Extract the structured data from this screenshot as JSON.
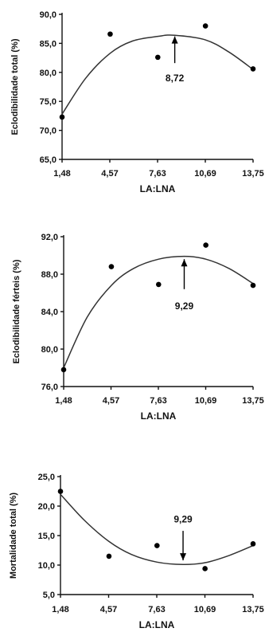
{
  "chart_data": [
    {
      "type": "scatter",
      "xlabel": "LA:LNA",
      "ylabel": "Eclodibilidade total (%)",
      "x_ticks": [
        "1,48",
        "4,57",
        "7,63",
        "10,69",
        "13,75"
      ],
      "y_ticks": [
        "65,0",
        "70,0",
        "75,0",
        "80,0",
        "85,0",
        "90,0"
      ],
      "ylim": [
        65,
        90
      ],
      "x": [
        1.48,
        4.57,
        7.63,
        10.69,
        13.75
      ],
      "y": [
        72.3,
        86.6,
        82.6,
        88.0,
        80.6
      ],
      "fit": [
        [
          1.48,
          72.8
        ],
        [
          3.0,
          79.0
        ],
        [
          4.57,
          83.3
        ],
        [
          6.0,
          85.4
        ],
        [
          7.63,
          86.2
        ],
        [
          8.72,
          86.4
        ],
        [
          10.69,
          85.6
        ],
        [
          12.2,
          83.5
        ],
        [
          13.75,
          80.5
        ]
      ],
      "annotation": {
        "text": "8,72",
        "x": 8.72,
        "arrow_tip_y": 86.2,
        "arrow_tail_y": 81.6,
        "label_y": 79.0
      }
    },
    {
      "type": "scatter",
      "xlabel": "LA:LNA",
      "ylabel": "Eclodibilidade férteis (%)",
      "x_ticks": [
        "1,48",
        "4,57",
        "7,63",
        "10,69",
        "13,75"
      ],
      "y_ticks": [
        "76,0",
        "80,0",
        "84,0",
        "88,0",
        "92,0"
      ],
      "ylim": [
        76,
        92
      ],
      "x": [
        1.48,
        4.57,
        7.63,
        10.69,
        13.75
      ],
      "y": [
        77.8,
        88.8,
        86.9,
        91.1,
        86.8
      ],
      "fit": [
        [
          1.48,
          78.0
        ],
        [
          3.0,
          83.4
        ],
        [
          4.57,
          86.8
        ],
        [
          6.0,
          88.6
        ],
        [
          7.63,
          89.6
        ],
        [
          9.29,
          89.9
        ],
        [
          10.69,
          89.6
        ],
        [
          12.2,
          88.6
        ],
        [
          13.75,
          87.0
        ]
      ],
      "annotation": {
        "text": "9,29",
        "x": 9.29,
        "arrow_tip_y": 89.6,
        "arrow_tail_y": 86.4,
        "label_y": 84.6
      }
    },
    {
      "type": "scatter",
      "xlabel": "LA:LNA",
      "ylabel": "Mortalidade total (%)",
      "x_ticks": [
        "1,48",
        "4,57",
        "7,63",
        "10,69",
        "13,75"
      ],
      "y_ticks": [
        "5,0",
        "10,0",
        "15,0",
        "20,0",
        "25,0"
      ],
      "ylim": [
        5,
        25
      ],
      "x": [
        1.48,
        4.57,
        7.63,
        10.69,
        13.75
      ],
      "y": [
        22.5,
        11.5,
        13.3,
        9.4,
        13.6
      ],
      "fit": [
        [
          1.48,
          22.0
        ],
        [
          3.0,
          17.6
        ],
        [
          4.57,
          14.0
        ],
        [
          6.0,
          11.8
        ],
        [
          7.63,
          10.5
        ],
        [
          9.29,
          10.1
        ],
        [
          10.69,
          10.4
        ],
        [
          12.2,
          11.6
        ],
        [
          13.75,
          13.3
        ]
      ],
      "annotation": {
        "text": "9,29",
        "x": 9.29,
        "arrow_tip_y": 10.8,
        "arrow_tail_y": 15.8,
        "label_y": 17.8
      }
    }
  ]
}
